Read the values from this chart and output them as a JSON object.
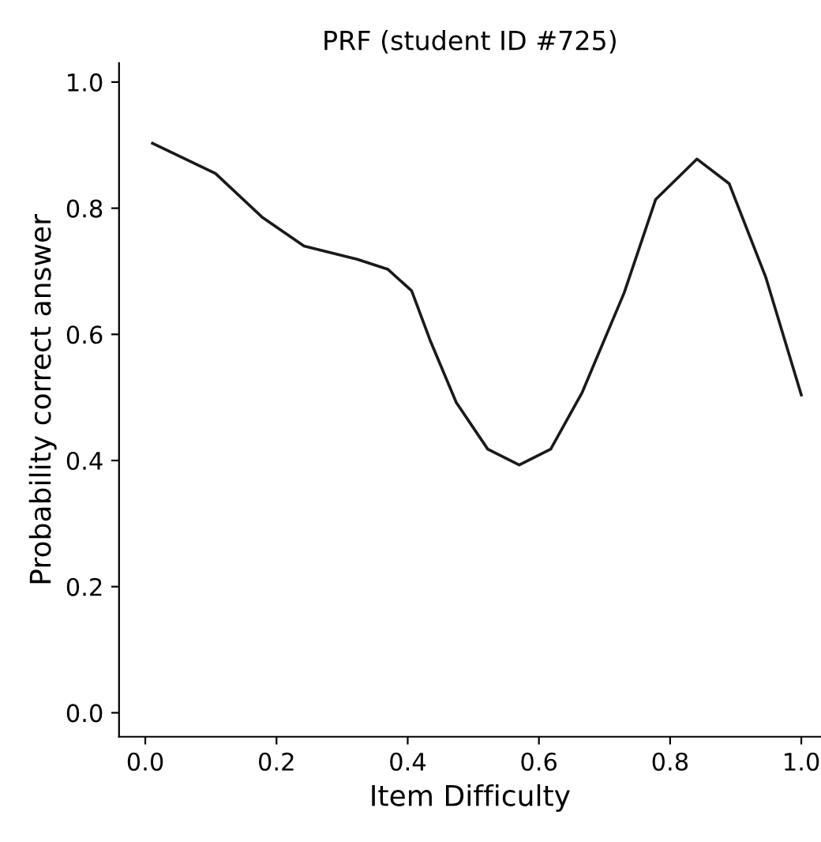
{
  "chart_data": {
    "type": "line",
    "title": "PRF (student ID #725)",
    "xlabel": "Item Difficulty",
    "ylabel": "Probability correct answer",
    "x": [
      0.011,
      0.107,
      0.179,
      0.242,
      0.323,
      0.37,
      0.406,
      0.434,
      0.474,
      0.522,
      0.57,
      0.618,
      0.666,
      0.73,
      0.778,
      0.841,
      0.89,
      0.946,
      1.0
    ],
    "series": [
      {
        "color": "#1a1a1a",
        "values": [
          0.903,
          0.855,
          0.785,
          0.74,
          0.719,
          0.703,
          0.669,
          0.591,
          0.492,
          0.418,
          0.393,
          0.418,
          0.508,
          0.666,
          0.814,
          0.878,
          0.839,
          0.69,
          0.504
        ]
      }
    ],
    "xlim": [
      -0.04,
      1.03
    ],
    "ylim": [
      -0.038,
      1.03
    ],
    "xticks": [
      {
        "value": 0,
        "label": "0.0"
      },
      {
        "value": 0.2,
        "label": "0.2"
      },
      {
        "value": 0.4,
        "label": "0.4"
      },
      {
        "value": 0.6,
        "label": "0.6"
      },
      {
        "value": 0.8,
        "label": "0.8"
      },
      {
        "value": 1,
        "label": "1.0"
      }
    ],
    "yticks": [
      {
        "value": 0,
        "label": "0.0"
      },
      {
        "value": 0.2,
        "label": "0.2"
      },
      {
        "value": 0.4,
        "label": "0.4"
      },
      {
        "value": 0.6,
        "label": "0.6"
      },
      {
        "value": 0.8,
        "label": "0.8"
      },
      {
        "value": 1,
        "label": "1.0"
      }
    ],
    "grid": false,
    "legend": false
  }
}
